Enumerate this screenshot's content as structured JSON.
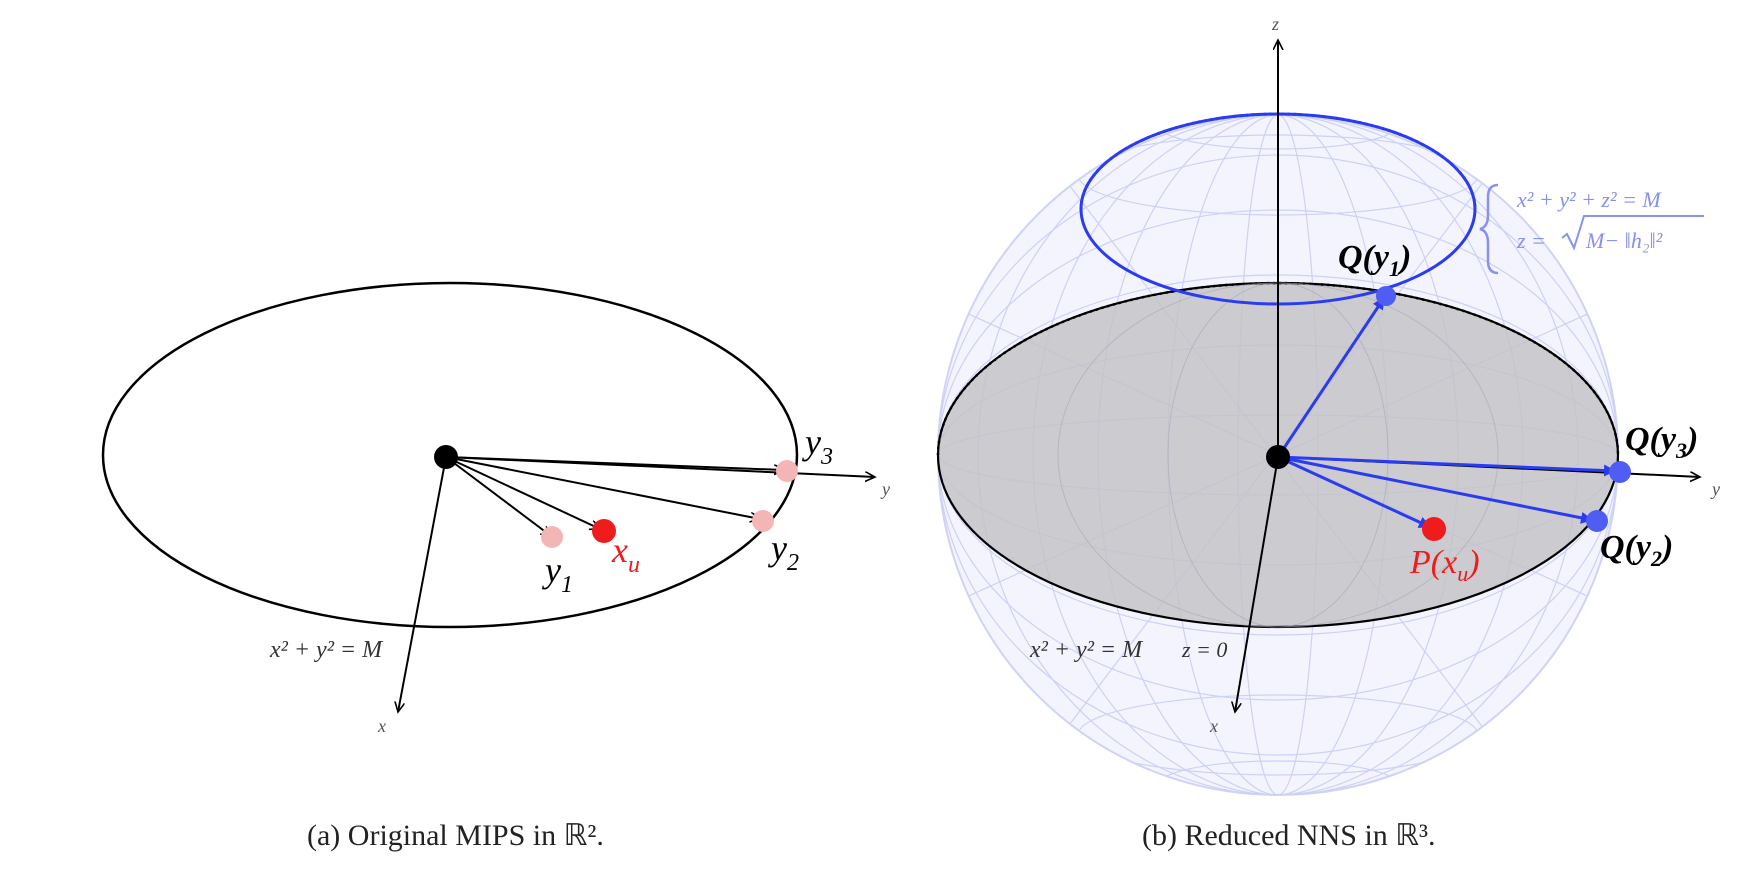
{
  "panel_a": {
    "caption": "(a) Original MIPS in ℝ².",
    "axis_x": "x",
    "axis_y": "y",
    "constraint": "x² + y² = M",
    "points": {
      "y1": {
        "base": "y",
        "sub": "1"
      },
      "y2": {
        "base": "y",
        "sub": "2"
      },
      "y3": {
        "base": "y",
        "sub": "3"
      },
      "xu": {
        "base": "x",
        "sub": "u"
      }
    }
  },
  "panel_b": {
    "caption": "(b) Reduced NNS in ℝ³.",
    "axis_x": "x",
    "axis_y": "y",
    "axis_z": "z",
    "constraint": "x² + y² = M",
    "z_zero": "z = 0",
    "brace_line1": "x² + y² + z² = M",
    "brace_line2_pre": "z = ",
    "brace_line2_rad": "M− ‖h₂‖²",
    "points": {
      "qy1": {
        "pre": "Q(",
        "base": "y",
        "sub": "1",
        "post": ")"
      },
      "qy2": {
        "pre": "Q(",
        "base": "y",
        "sub": "2",
        "post": ")"
      },
      "qy3": {
        "pre": "Q(",
        "base": "y",
        "sub": "3",
        "post": ")"
      },
      "pxu": {
        "pre": "P(",
        "base": "x",
        "sub": "u",
        "post": ")"
      }
    }
  },
  "colors": {
    "black": "#000000",
    "pink": "#f4b5b5",
    "red": "#ee1c1c",
    "blue": "#2b3cf0",
    "blue_light": "#8890f0",
    "sphere": "#c9cdf6",
    "disk": "#c4c3c8"
  }
}
